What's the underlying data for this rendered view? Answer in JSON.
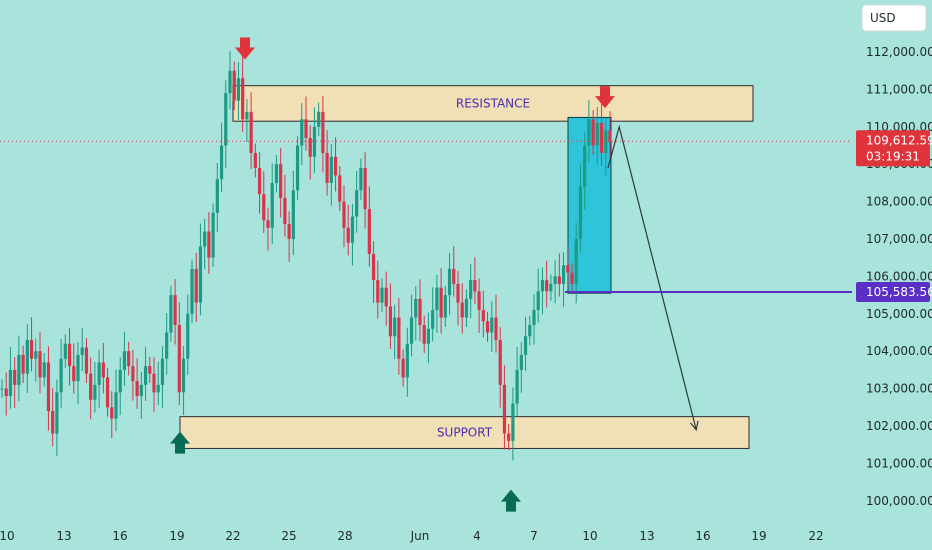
{
  "chart_data": {
    "type": "candlestick",
    "currency_button": "USD",
    "y_axis": {
      "min": 99500,
      "max": 112500,
      "ticks": [
        112000,
        111000,
        110000,
        109000,
        108000,
        107000,
        106000,
        105000,
        104000,
        103000,
        102000,
        101000,
        100000
      ],
      "tick_labels": [
        "112,000.00",
        "111,000.00",
        "110,000.00",
        "109,000.00",
        "108,000.00",
        "107,000.00",
        "106,000.00",
        "105,000.00",
        "104,000.00",
        "103,000.00",
        "102,000.00",
        "101,000.00",
        "100,000.00"
      ]
    },
    "x_axis": {
      "tick_labels": [
        "10",
        "13",
        "16",
        "19",
        "22",
        "25",
        "28",
        "Jun",
        "4",
        "7",
        "10",
        "13",
        "16",
        "19",
        "22"
      ]
    },
    "zones": [
      {
        "label": "RESISTANCE",
        "low": 110150,
        "high": 111100
      },
      {
        "label": "SUPPORT",
        "low": 101400,
        "high": 102250
      }
    ],
    "consolidation_box": {
      "low": 105550,
      "high": 110250
    },
    "current_price": {
      "value": 109612.59,
      "label": "109,612.59",
      "countdown": "03:19:31"
    },
    "level_line": {
      "value": 105583.56,
      "label": "105,583.56"
    },
    "projection_path": [
      {
        "day": 11.0,
        "price": 108900
      },
      {
        "day": 11.6,
        "price": 110000
      },
      {
        "day": 15.7,
        "price": 101900
      }
    ],
    "markers": [
      {
        "type": "down-arrow",
        "color": "#e0343d",
        "day": 22.6,
        "price": 111800
      },
      {
        "type": "down-arrow",
        "color": "#e0343d",
        "day": 10.9,
        "price": 110500
      },
      {
        "type": "up-arrow",
        "color": "#0a6b55",
        "day": 18.4,
        "price": 101850
      },
      {
        "type": "up-arrow",
        "color": "#0a6b55",
        "day": 5.4,
        "price": 100300
      }
    ],
    "candles_note_series": [
      103000,
      102800,
      103500,
      103100,
      103900,
      103400,
      104300,
      103800,
      104000,
      103300,
      103700,
      102400,
      101800,
      102900,
      103800,
      104200,
      103600,
      103200,
      103900,
      104100,
      103400,
      102700,
      103100,
      103700,
      103300,
      102500,
      102200,
      102900,
      103500,
      104000,
      103600,
      103200,
      102800,
      103100,
      103600,
      103400,
      102900,
      103100,
      103800,
      104500,
      105500,
      104700,
      102900,
      103800,
      105000,
      106200,
      105300,
      106800,
      107200,
      106500,
      107700,
      108600,
      109500,
      110900,
      111500,
      110700,
      111300,
      110200,
      110400,
      109300,
      108900,
      108200,
      107500,
      107300,
      108500,
      109000,
      108100,
      107400,
      107000,
      108300,
      109500,
      110200,
      109700,
      109200,
      110000,
      110400,
      109300,
      108500,
      109200,
      108700,
      108000,
      107300,
      106900,
      107600,
      108300,
      108900,
      107800,
      106600,
      105900,
      105300,
      105700,
      105200,
      104400,
      104900,
      103800,
      103300,
      104200,
      104900,
      105400,
      104700,
      104200,
      104600,
      105100,
      105700,
      104900,
      105500,
      106200,
      105800,
      105300,
      104900,
      105400,
      105900,
      105600,
      105100,
      104800,
      104500,
      104900,
      104300,
      103100,
      101800,
      101600,
      102600,
      103500,
      103900,
      104400,
      104700,
      105100,
      105600,
      105900,
      105600,
      105800,
      106000,
      105800,
      106300,
      106100,
      105800,
      107000,
      108400,
      109500,
      110200,
      109500,
      110100,
      109300,
      109900,
      109600
    ]
  }
}
